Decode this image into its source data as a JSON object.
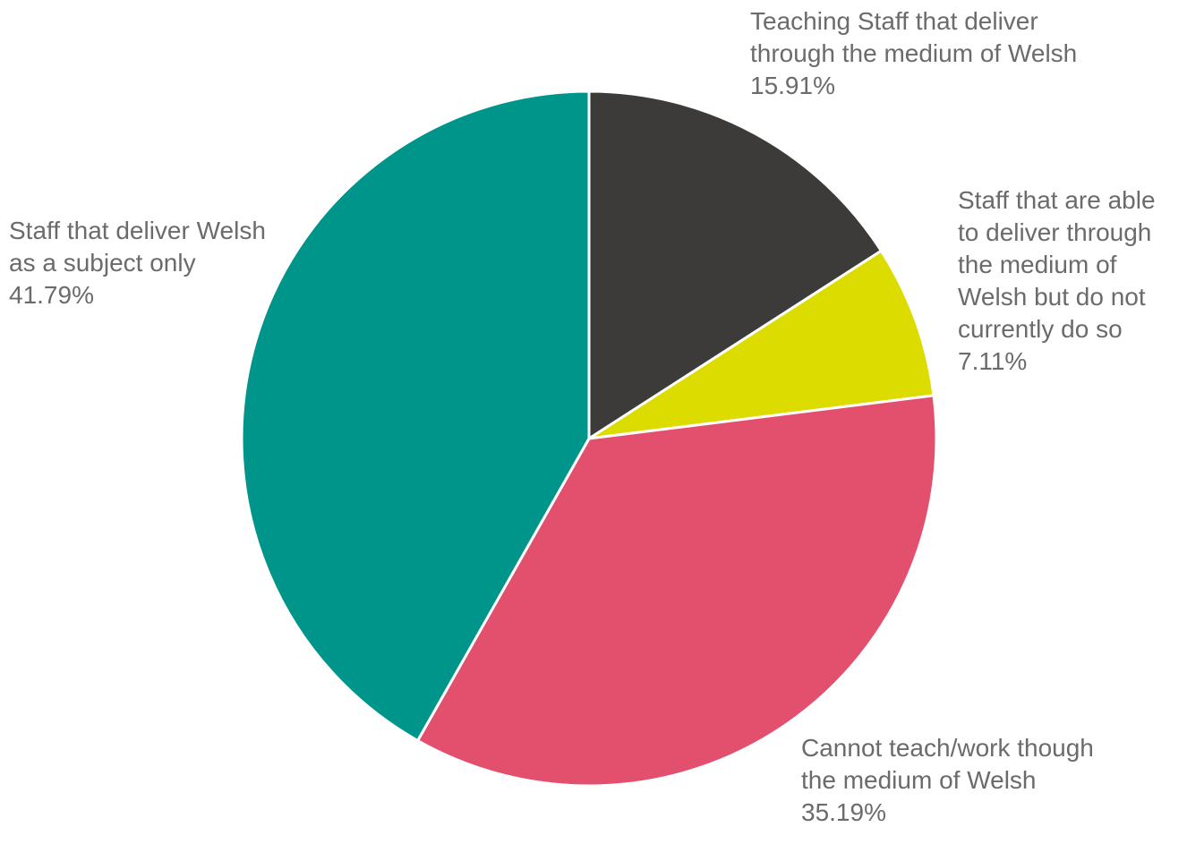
{
  "chart_data": {
    "type": "pie",
    "slices": [
      {
        "label_lines": [
          "Teaching Staff that deliver",
          "through the medium of Welsh"
        ],
        "value": 15.91,
        "value_text": "15.91%",
        "color": "#3c3b3a"
      },
      {
        "label_lines": [
          "Staff that are able",
          "to deliver through",
          "the medium of",
          "Welsh but do not",
          "currently do so"
        ],
        "value": 7.11,
        "value_text": "7.11%",
        "color": "#dcdc00"
      },
      {
        "label_lines": [
          "Cannot teach/work though",
          "the medium of Welsh"
        ],
        "value": 35.19,
        "value_text": "35.19%",
        "color": "#e2506e"
      },
      {
        "label_lines": [
          "Staff that deliver Welsh",
          "as a subject only"
        ],
        "value": 41.79,
        "value_text": "41.79%",
        "color": "#00958a"
      }
    ],
    "start_angle": "12 o'clock",
    "direction": "clockwise",
    "legend": "none"
  }
}
